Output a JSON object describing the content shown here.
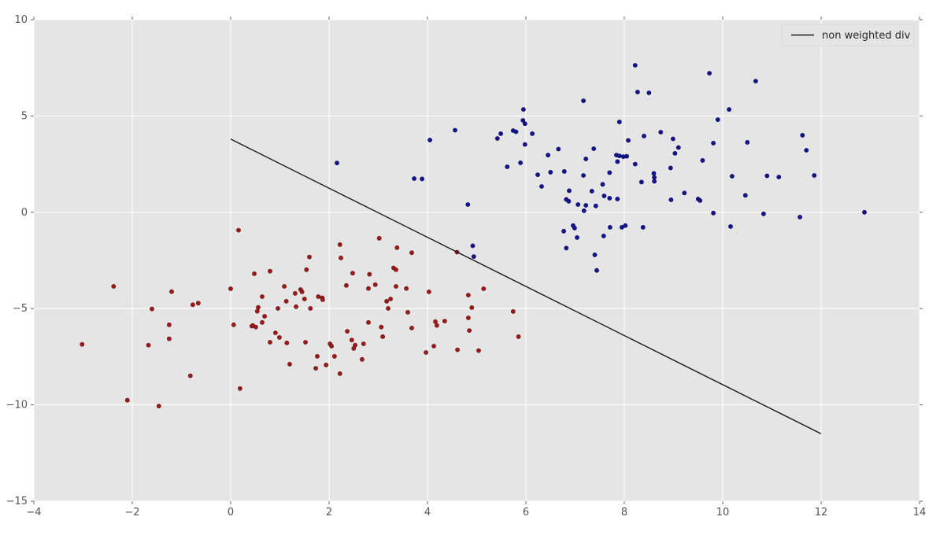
{
  "chart_data": {
    "type": "scatter",
    "title": "",
    "xlabel": "",
    "ylabel": "",
    "xlim": [
      -4,
      14
    ],
    "ylim": [
      -15,
      10
    ],
    "xticks": [
      -4,
      -2,
      0,
      2,
      4,
      6,
      8,
      10,
      12,
      14
    ],
    "yticks": [
      -15,
      -10,
      -5,
      0,
      5,
      10
    ],
    "grid": true,
    "style": {
      "figure_bg": "#ffffff",
      "plot_bg": "#e5e5e5",
      "grid_color": "#ffffff",
      "tick_color": "#666666",
      "tick_label_color": "#555555",
      "legend_bg": "#e5e5e5",
      "legend_border": "#d9d9d9",
      "legend_text_color": "#262626"
    },
    "legend": {
      "position": "upper right",
      "entries": [
        {
          "label": "non weighted div",
          "type": "line",
          "color": "#1a1a1a"
        }
      ]
    },
    "series": [
      {
        "name": "blue-cluster",
        "type": "scatter",
        "color": "#14148c",
        "edge_color": "#0a0a5e",
        "points": [
          [
            8.22,
            7.63
          ],
          [
            9.73,
            7.22
          ],
          [
            10.67,
            6.81
          ],
          [
            8.27,
            6.24
          ],
          [
            8.5,
            6.2
          ],
          [
            7.17,
            5.79
          ],
          [
            5.95,
            5.34
          ],
          [
            10.13,
            5.34
          ],
          [
            5.94,
            4.77
          ],
          [
            5.98,
            4.6
          ],
          [
            9.9,
            4.81
          ],
          [
            4.56,
            4.26
          ],
          [
            5.74,
            4.24
          ],
          [
            5.8,
            4.18
          ],
          [
            5.49,
            4.08
          ],
          [
            6.13,
            4.08
          ],
          [
            5.42,
            3.83
          ],
          [
            7.9,
            4.69
          ],
          [
            8.4,
            3.96
          ],
          [
            8.74,
            4.16
          ],
          [
            8.99,
            3.81
          ],
          [
            8.08,
            3.73
          ],
          [
            9.1,
            3.36
          ],
          [
            9.03,
            3.06
          ],
          [
            4.05,
            3.75
          ],
          [
            5.98,
            3.52
          ],
          [
            6.66,
            3.28
          ],
          [
            7.38,
            3.3
          ],
          [
            6.45,
            2.97
          ],
          [
            7.22,
            2.77
          ],
          [
            7.84,
            2.97
          ],
          [
            7.9,
            2.93
          ],
          [
            7.98,
            2.89
          ],
          [
            8.05,
            2.91
          ],
          [
            7.86,
            2.63
          ],
          [
            8.22,
            2.5
          ],
          [
            5.89,
            2.57
          ],
          [
            5.62,
            2.36
          ],
          [
            8.94,
            2.3
          ],
          [
            6.5,
            2.08
          ],
          [
            6.78,
            2.12
          ],
          [
            7.7,
            2.06
          ],
          [
            10.5,
            3.63
          ],
          [
            9.81,
            3.59
          ],
          [
            11.62,
            4.0
          ],
          [
            11.7,
            3.22
          ],
          [
            9.59,
            2.69
          ],
          [
            3.73,
            1.75
          ],
          [
            3.89,
            1.73
          ],
          [
            2.16,
            2.56
          ],
          [
            4.82,
            0.4
          ],
          [
            4.92,
            -1.74
          ],
          [
            4.94,
            -2.3
          ],
          [
            6.24,
            1.95
          ],
          [
            7.17,
            1.91
          ],
          [
            6.32,
            1.34
          ],
          [
            10.19,
            1.87
          ],
          [
            10.9,
            1.89
          ],
          [
            11.14,
            1.83
          ],
          [
            11.86,
            1.91
          ],
          [
            8.35,
            1.57
          ],
          [
            8.6,
            2.02
          ],
          [
            8.61,
            1.81
          ],
          [
            8.61,
            1.61
          ],
          [
            6.88,
            1.12
          ],
          [
            7.34,
            1.1
          ],
          [
            9.22,
            1.0
          ],
          [
            7.56,
            1.45
          ],
          [
            7.59,
            0.85
          ],
          [
            7.7,
            0.73
          ],
          [
            7.86,
            0.69
          ],
          [
            6.82,
            0.67
          ],
          [
            6.87,
            0.57
          ],
          [
            9.5,
            0.69
          ],
          [
            9.54,
            0.61
          ],
          [
            8.95,
            0.65
          ],
          [
            10.46,
            0.88
          ],
          [
            7.06,
            0.4
          ],
          [
            7.22,
            0.36
          ],
          [
            7.42,
            0.33
          ],
          [
            7.18,
            0.08
          ],
          [
            9.81,
            -0.04
          ],
          [
            10.83,
            -0.08
          ],
          [
            12.88,
            0.0
          ],
          [
            11.57,
            -0.25
          ],
          [
            6.77,
            -0.98
          ],
          [
            6.96,
            -0.69
          ],
          [
            6.99,
            -0.82
          ],
          [
            7.04,
            -1.31
          ],
          [
            7.71,
            -0.78
          ],
          [
            7.95,
            -0.78
          ],
          [
            8.02,
            -0.69
          ],
          [
            8.38,
            -0.78
          ],
          [
            10.16,
            -0.74
          ],
          [
            7.58,
            -1.23
          ],
          [
            6.82,
            -1.86
          ],
          [
            7.4,
            -2.21
          ],
          [
            7.44,
            -3.02
          ]
        ]
      },
      {
        "name": "red-cluster",
        "type": "scatter",
        "color": "#9b1b1b",
        "edge_color": "#6b0f0f",
        "points": [
          [
            0.16,
            -0.93
          ],
          [
            -2.38,
            -3.85
          ],
          [
            -1.2,
            -4.12
          ],
          [
            0.0,
            -3.97
          ],
          [
            -0.77,
            -4.8
          ],
          [
            -0.66,
            -4.72
          ],
          [
            -1.6,
            -5.02
          ],
          [
            -1.25,
            -5.84
          ],
          [
            0.06,
            -5.84
          ],
          [
            0.43,
            -5.91
          ],
          [
            -1.25,
            -6.57
          ],
          [
            -3.02,
            -6.86
          ],
          [
            -1.67,
            -6.9
          ],
          [
            -0.82,
            -8.49
          ],
          [
            0.19,
            -9.15
          ],
          [
            -2.1,
            -9.76
          ],
          [
            -1.46,
            -10.06
          ],
          [
            1.6,
            -2.32
          ],
          [
            2.22,
            -1.68
          ],
          [
            3.02,
            -1.35
          ],
          [
            3.38,
            -1.84
          ],
          [
            3.68,
            -2.1
          ],
          [
            2.24,
            -2.37
          ],
          [
            3.31,
            -2.89
          ],
          [
            3.36,
            -2.98
          ],
          [
            2.48,
            -3.16
          ],
          [
            2.82,
            -3.22
          ],
          [
            0.48,
            -3.19
          ],
          [
            0.8,
            -3.06
          ],
          [
            1.54,
            -2.98
          ],
          [
            1.09,
            -3.85
          ],
          [
            1.42,
            -4.01
          ],
          [
            1.31,
            -4.21
          ],
          [
            1.45,
            -4.13
          ],
          [
            0.64,
            -4.38
          ],
          [
            1.13,
            -4.62
          ],
          [
            1.5,
            -4.5
          ],
          [
            1.78,
            -4.38
          ],
          [
            1.86,
            -4.44
          ],
          [
            1.87,
            -4.54
          ],
          [
            0.96,
            -4.99
          ],
          [
            1.33,
            -4.9
          ],
          [
            1.62,
            -4.99
          ],
          [
            0.56,
            -4.94
          ],
          [
            0.54,
            -5.14
          ],
          [
            0.69,
            -5.4
          ],
          [
            0.64,
            -5.72
          ],
          [
            0.45,
            -5.88
          ],
          [
            0.51,
            -5.96
          ],
          [
            0.91,
            -6.26
          ],
          [
            0.99,
            -6.5
          ],
          [
            0.8,
            -6.75
          ],
          [
            1.14,
            -6.78
          ],
          [
            1.52,
            -6.75
          ],
          [
            2.02,
            -6.83
          ],
          [
            2.05,
            -6.95
          ],
          [
            1.76,
            -7.48
          ],
          [
            2.11,
            -7.48
          ],
          [
            1.2,
            -7.89
          ],
          [
            1.73,
            -8.1
          ],
          [
            1.94,
            -7.93
          ],
          [
            2.22,
            -8.38
          ],
          [
            2.35,
            -3.8
          ],
          [
            2.8,
            -3.96
          ],
          [
            2.94,
            -3.76
          ],
          [
            3.36,
            -3.85
          ],
          [
            3.57,
            -3.96
          ],
          [
            3.17,
            -4.62
          ],
          [
            3.25,
            -4.5
          ],
          [
            3.2,
            -4.99
          ],
          [
            4.03,
            -4.13
          ],
          [
            3.6,
            -5.19
          ],
          [
            4.83,
            -4.3
          ],
          [
            4.9,
            -4.95
          ],
          [
            2.8,
            -5.72
          ],
          [
            3.06,
            -5.96
          ],
          [
            2.37,
            -6.18
          ],
          [
            3.09,
            -6.46
          ],
          [
            3.68,
            -6.01
          ],
          [
            4.16,
            -5.68
          ],
          [
            4.35,
            -5.65
          ],
          [
            4.19,
            -5.88
          ],
          [
            4.85,
            -6.14
          ],
          [
            2.46,
            -6.63
          ],
          [
            2.53,
            -6.9
          ],
          [
            2.5,
            -7.07
          ],
          [
            2.7,
            -6.83
          ],
          [
            3.97,
            -7.28
          ],
          [
            4.13,
            -6.95
          ],
          [
            4.61,
            -7.14
          ],
          [
            2.67,
            -7.64
          ],
          [
            4.6,
            -2.07
          ],
          [
            5.14,
            -3.97
          ],
          [
            5.74,
            -5.15
          ],
          [
            4.83,
            -5.48
          ],
          [
            5.85,
            -6.46
          ],
          [
            5.04,
            -7.18
          ]
        ]
      },
      {
        "name": "non-weighted-div-line",
        "type": "line",
        "color": "#1a1a1a",
        "points": [
          [
            0,
            3.8
          ],
          [
            12,
            -11.5
          ]
        ]
      }
    ]
  }
}
